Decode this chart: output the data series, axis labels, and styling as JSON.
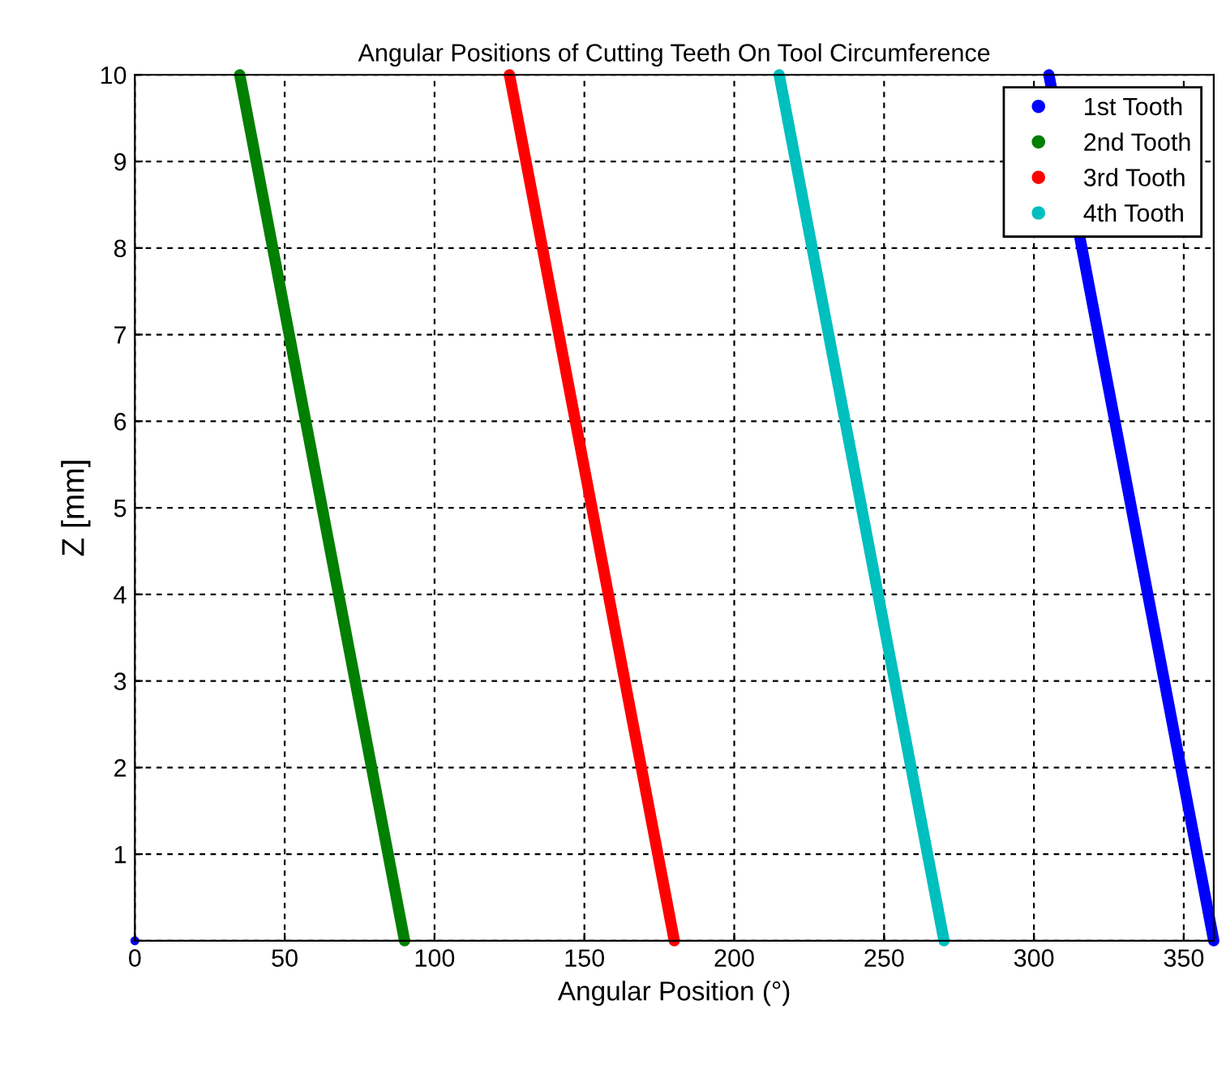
{
  "chart_data": {
    "type": "line",
    "title": "Angular Positions of Cutting Teeth On Tool Circumference",
    "xlabel": "Angular Position (°)",
    "ylabel": "Z [mm]",
    "series": [
      {
        "name": "1st Tooth",
        "color": "#0000ff",
        "x": [
          360,
          305
        ],
        "values": [
          0,
          10
        ]
      },
      {
        "type": "scatter",
        "color": "#0000ff",
        "x": [
          0
        ],
        "values": [
          0
        ]
      },
      {
        "name": "2nd Tooth",
        "color": "#007f00",
        "x": [
          90,
          35
        ],
        "values": [
          0,
          10
        ]
      },
      {
        "name": "3rd Tooth",
        "color": "#ff0000",
        "x": [
          180,
          125
        ],
        "values": [
          0,
          10
        ]
      },
      {
        "name": "4th Tooth",
        "color": "#00bfbf",
        "x": [
          270,
          215
        ],
        "values": [
          0,
          10
        ]
      }
    ],
    "xlim": [
      0,
      360
    ],
    "ylim": [
      0,
      10
    ],
    "xticks": [
      0,
      50,
      100,
      150,
      200,
      250,
      300,
      350
    ],
    "yticks": [
      {
        "value": 0,
        "label": null
      },
      1,
      2,
      3,
      4,
      5,
      6,
      7,
      8,
      9,
      10
    ],
    "grid": true,
    "legend": "top right",
    "marker": "circle",
    "line_style": "solid"
  }
}
